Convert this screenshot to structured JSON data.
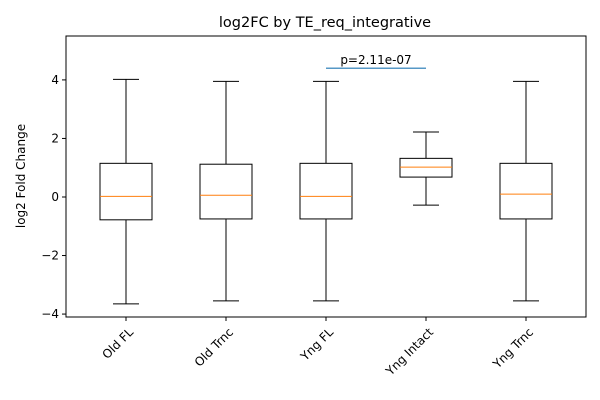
{
  "chart_data": {
    "type": "box",
    "title": "log2FC by TE_req_integrative",
    "xlabel": "",
    "ylabel": "log2 Fold Change",
    "ylim": [
      -4.1,
      5.5
    ],
    "yticks": [
      -4,
      -2,
      0,
      2,
      4
    ],
    "ytick_labels": [
      "−4",
      "−2",
      "0",
      "2",
      "4"
    ],
    "categories": [
      "Old FL",
      "Old Trnc",
      "Yng FL",
      "Yng Intact",
      "Yng Trnc"
    ],
    "boxes": [
      {
        "category": "Old FL",
        "whisker_low": -3.65,
        "q1": -0.78,
        "median": 0.02,
        "q3": 1.15,
        "whisker_high": 4.02
      },
      {
        "category": "Old Trnc",
        "whisker_low": -3.55,
        "q1": -0.75,
        "median": 0.06,
        "q3": 1.12,
        "whisker_high": 3.95
      },
      {
        "category": "Yng FL",
        "whisker_low": -3.55,
        "q1": -0.75,
        "median": 0.02,
        "q3": 1.15,
        "whisker_high": 3.95
      },
      {
        "category": "Yng Intact",
        "whisker_low": -0.28,
        "q1": 0.68,
        "median": 1.02,
        "q3": 1.32,
        "whisker_high": 2.22
      },
      {
        "category": "Yng Trnc",
        "whisker_low": -3.55,
        "q1": -0.75,
        "median": 0.1,
        "q3": 1.15,
        "whisker_high": 3.95
      }
    ],
    "annotation": {
      "text": "p=2.11e-07",
      "y": 4.4,
      "from_category": "Yng FL",
      "to_category": "Yng Intact"
    },
    "colors": {
      "box": "#000000",
      "median": "#ff7f0e",
      "annotation_line": "#1f77b4"
    },
    "grid": false
  }
}
